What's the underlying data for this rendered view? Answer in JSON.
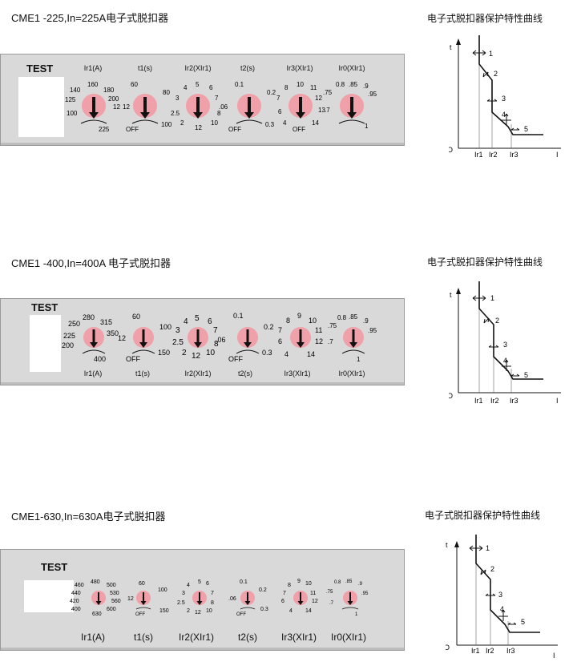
{
  "sections": [
    {
      "title": "CME1  -225,In=225A电子式脱扣器",
      "curve_title": "电子式脱扣器保护特性曲线",
      "test_label": "TEST",
      "labels_on_top": true,
      "knobs": [
        {
          "label": "Ir1(A)",
          "scale": [
            "100",
            "125",
            "140",
            "160",
            "180",
            "200",
            "12",
            "225"
          ]
        },
        {
          "label": "t1(s)",
          "scale": [
            "60",
            "80",
            "12",
            "OFF",
            "100"
          ]
        },
        {
          "label": "Ir2(XIr1)",
          "scale": [
            "2.5",
            "3",
            "4",
            "5",
            "6",
            "7",
            "8",
            "10",
            "12",
            "2"
          ]
        },
        {
          "label": "t2(s)",
          "scale": [
            "0.1",
            "0.2",
            ".06",
            "OFF",
            "0.3"
          ]
        },
        {
          "label": "Ir3(XIr1)",
          "scale": [
            "6",
            "7",
            "8",
            "10",
            "11",
            "12",
            "13",
            "14",
            "OFF",
            "4"
          ]
        },
        {
          "label": "Ir0(XIr1)",
          "scale": [
            ".75",
            "0.8",
            ".85",
            ".9",
            ".95",
            ".7",
            "1"
          ]
        }
      ]
    },
    {
      "title": "CME1 -400,In=400A 电子式脱扣器",
      "curve_title": "电子式脱扣器保护特性曲线",
      "test_label": "TEST",
      "labels_on_top": false,
      "knobs": [
        {
          "label": "Ir1(A)",
          "scale": [
            "200",
            "225",
            "250",
            "280",
            "315",
            "350",
            "400"
          ]
        },
        {
          "label": "t1(s)",
          "scale": [
            "60",
            "100",
            "12",
            "OFF",
            "150"
          ]
        },
        {
          "label": "Ir2(XIr1)",
          "scale": [
            "2.5",
            "3",
            "4",
            "5",
            "6",
            "7",
            "8",
            "10",
            "12",
            "2"
          ]
        },
        {
          "label": "t2(s)",
          "scale": [
            "0.1",
            "0.2",
            ".06",
            "OFF",
            "0.3"
          ]
        },
        {
          "label": "Ir3(XIr1)",
          "scale": [
            "6",
            "7",
            "8",
            "9",
            "10",
            "11",
            "12",
            "14",
            "4"
          ]
        },
        {
          "label": "Ir0(XIr1)",
          "scale": [
            ".75",
            "0.8",
            ".85",
            ".9",
            ".95",
            ".7",
            "1"
          ]
        }
      ]
    },
    {
      "title": "CME1-630,In=630A电子式脱扣器",
      "curve_title": "电子式脱扣器保护特性曲线",
      "test_label": "TEST",
      "labels_on_top": false,
      "knobs": [
        {
          "label": "Ir1(A)",
          "scale": [
            "400",
            "420",
            "440",
            "460",
            "480",
            "500",
            "530",
            "560",
            "600",
            "630"
          ]
        },
        {
          "label": "t1(s)",
          "scale": [
            "60",
            "100",
            "12",
            "OFF",
            "150"
          ]
        },
        {
          "label": "Ir2(XIr1)",
          "scale": [
            "2.5",
            "3",
            "4",
            "5",
            "6",
            "7",
            "8",
            "10",
            "12",
            "2"
          ]
        },
        {
          "label": "t2(s)",
          "scale": [
            "0.1",
            "0.2",
            ".06",
            "OFF",
            "0.3"
          ]
        },
        {
          "label": "Ir3(XIr1)",
          "scale": [
            "6",
            "7",
            "8",
            "9",
            "10",
            "11",
            "12",
            "14",
            "4"
          ]
        },
        {
          "label": "Ir0(XIr1)",
          "scale": [
            ".75",
            "0.8",
            ".85",
            ".9",
            ".95",
            ".7",
            "1"
          ]
        }
      ]
    }
  ],
  "curve": {
    "t_label": "t",
    "i_label": "I",
    "origin_label": "O",
    "x_labels": [
      "Ir1",
      "Ir2",
      "Ir3"
    ],
    "point_labels": [
      "1",
      "2",
      "3",
      "4",
      "5"
    ]
  },
  "colors": {
    "panel": "#d9d9d9",
    "knob": "#f0a0a8",
    "arrow": "#111111"
  }
}
